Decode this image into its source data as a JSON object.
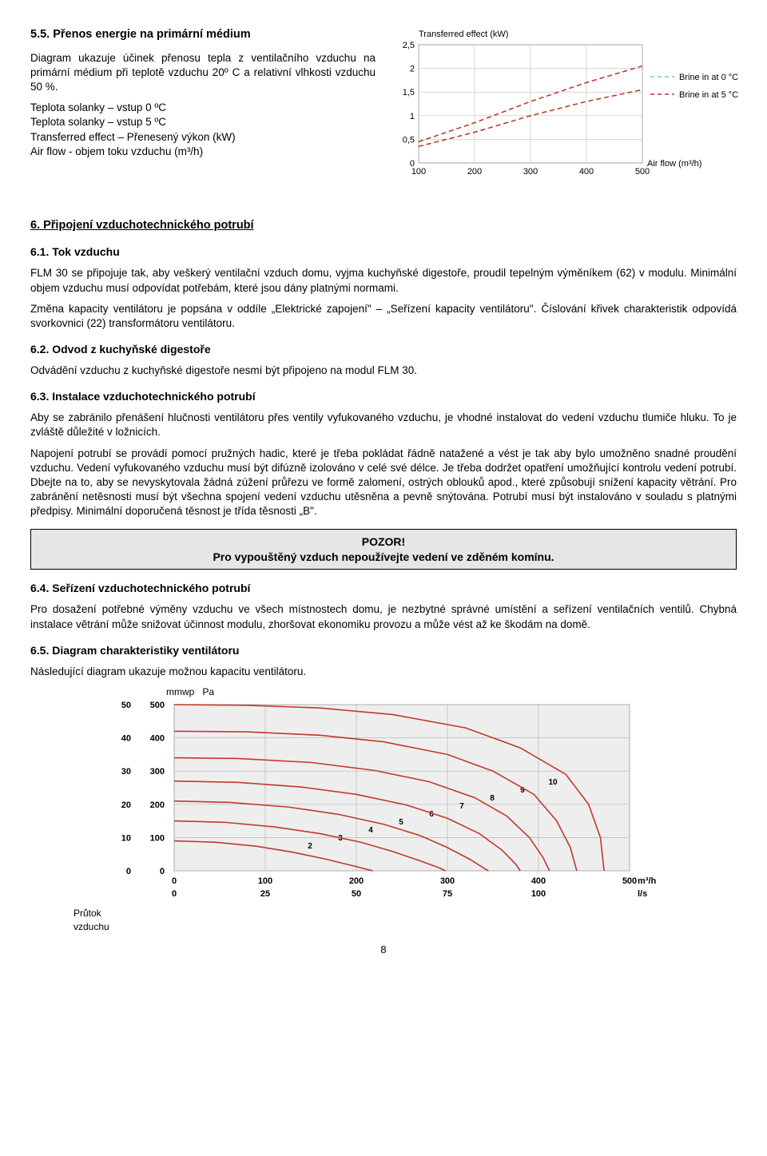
{
  "section55": {
    "heading": "5.5.    Přenos energie na primární médium",
    "p1": "Diagram ukazuje účinek přenosu tepla z ventilačního vzduchu na primární médium při teplotě vzduchu 20º C a relativní vlhkosti vzduchu 50 %.",
    "l1": "Teplota solanky – vstup 0 ºC",
    "l2": "Teplota solanky – vstup 5 ºC",
    "l3": "Transferred effect – Přenesený výkon (kW)",
    "l4": "Air flow - objem toku vzduchu (m³/h)"
  },
  "chart1": {
    "type": "line",
    "ylabel": "Transferred effect (kW)",
    "xlabel": "Air flow (m³/h)",
    "yticks": [
      0,
      0.5,
      1,
      1.5,
      2,
      2.5
    ],
    "xticks": [
      100,
      200,
      300,
      400,
      500
    ],
    "xlim": [
      100,
      500
    ],
    "ylim": [
      0,
      2.5
    ],
    "grid_color": "#c0c0c0",
    "background_color": "#ffffff",
    "series": [
      {
        "name": "Brine in at 0 °C",
        "color": "#c0392b",
        "dash": "6,4",
        "legend_color": "#7bd389",
        "x": [
          100,
          200,
          300,
          400,
          500
        ],
        "y": [
          0.45,
          0.85,
          1.3,
          1.7,
          2.05
        ]
      },
      {
        "name": "Brine in at 5 °C",
        "color": "#c0392b",
        "dash": "6,4",
        "legend_color": "#c0392b",
        "x": [
          100,
          200,
          300,
          400,
          500
        ],
        "y": [
          0.35,
          0.65,
          1.0,
          1.3,
          1.55
        ]
      }
    ],
    "label_fontsize": 11
  },
  "section6": {
    "heading": "6.      Připojení  vzduchotechnického potrubí"
  },
  "section61": {
    "heading": "6.1.   Tok vzduchu",
    "p1": "FLM 30 se připojuje tak, aby veškerý ventilační vzduch domu, vyjma kuchyňské digestoře, proudil tepelným výměníkem (62) v modulu. Minimální objem vzduchu musí odpovídat potřebám, které jsou dány platnými normami.",
    "p2": "Změna kapacity ventilátoru je popsána v oddíle  „Elektrické zapojení\" – „Seřízení kapacity ventilátoru\". Číslování křivek charakteristik odpovídá svorkovnici (22) transformátoru ventilátoru."
  },
  "section62": {
    "heading": "6.2.    Odvod z kuchyňské digestoře",
    "p1": "Odvádění vzduchu z kuchyňské digestoře nesmí být připojeno na modul FLM 30."
  },
  "section63": {
    "heading": "6.3.    Instalace vzduchotechnického potrubí",
    "p1": "Aby se zabránilo přenášení hlučnosti ventilátoru přes ventily vyfukovaného vzduchu, je vhodné instalovat do vedení vzduchu tlumiče hluku. To je zvláště důležité v ložnicích.",
    "p2": "Napojení potrubí se provádí pomocí pružných hadic, které je třeba pokládat řádně natažené a vést je tak aby bylo umožněno snadné proudění vzduchu. Vedení vyfukovaného vzduchu musí být difúzně izolováno v celé své délce. Je třeba dodržet opatření umožňující kontrolu vedení potrubí. Dbejte na to, aby se nevyskytovala žádná zúžení průřezu ve formě zalomení, ostrých oblouků apod., které způsobují snížení kapacity větrání. Pro zabránění netěsnosti musí být všechna spojení vedení vzduchu utěsněna a pevně snýtována. Potrubí musí být instalováno v souladu s platnými předpisy. Minimální doporučená těsnost je třída těsnosti „B\"."
  },
  "warn": {
    "line1": "POZOR!",
    "line2": "Pro vypouštěný vzduch nepoužívejte vedení ve  zděném komínu."
  },
  "section64": {
    "heading": "6.4.   Seřízení vzduchotechnického potrubí",
    "p1": "Pro dosažení potřebné výměny vzduchu ve všech místnostech domu, je nezbytné správné umístění a seřízení ventilačních ventilů. Chybná instalace větrání může snižovat účinnost modulu, zhoršovat ekonomiku provozu a může vést až ke škodám na domě."
  },
  "section65": {
    "heading": "6.5.   Diagram charakteristiky ventilátoru",
    "p1": "Následující diagram ukazuje možnou kapacitu ventilátoru."
  },
  "chart2": {
    "type": "line",
    "ylabel_left": "mmwp",
    "ylabel_right": "Pa",
    "y_mmwp": [
      0,
      10,
      20,
      30,
      40,
      50
    ],
    "y_pa": [
      0,
      100,
      200,
      300,
      400,
      500
    ],
    "x_m3h": [
      0,
      100,
      200,
      300,
      400,
      500
    ],
    "x_ls": [
      0,
      25,
      50,
      75,
      100
    ],
    "x_unit_top": "m³/h",
    "x_unit_bottom": "l/s",
    "flow_label": "Průtok vzduchu",
    "inner_ticks": [
      2,
      3,
      4,
      5,
      6,
      7,
      8,
      9,
      10
    ],
    "xlim": [
      0,
      500
    ],
    "ylim_pa": [
      0,
      500
    ],
    "grid_color": "#b8b8b8",
    "background_color": "#eeeeee",
    "line_color": "#c0392b",
    "line_width": 1.6,
    "fontsize": 11,
    "curves": [
      [
        [
          0,
          500
        ],
        [
          80,
          498
        ],
        [
          160,
          490
        ],
        [
          240,
          470
        ],
        [
          320,
          430
        ],
        [
          380,
          370
        ],
        [
          430,
          290
        ],
        [
          455,
          200
        ],
        [
          468,
          100
        ],
        [
          472,
          0
        ]
      ],
      [
        [
          0,
          420
        ],
        [
          80,
          418
        ],
        [
          160,
          408
        ],
        [
          230,
          388
        ],
        [
          300,
          350
        ],
        [
          350,
          300
        ],
        [
          395,
          230
        ],
        [
          420,
          150
        ],
        [
          435,
          70
        ],
        [
          442,
          0
        ]
      ],
      [
        [
          0,
          340
        ],
        [
          70,
          338
        ],
        [
          150,
          326
        ],
        [
          220,
          302
        ],
        [
          280,
          268
        ],
        [
          330,
          220
        ],
        [
          365,
          165
        ],
        [
          390,
          100
        ],
        [
          405,
          40
        ],
        [
          412,
          0
        ]
      ],
      [
        [
          0,
          270
        ],
        [
          70,
          266
        ],
        [
          140,
          252
        ],
        [
          200,
          230
        ],
        [
          255,
          198
        ],
        [
          300,
          158
        ],
        [
          335,
          112
        ],
        [
          360,
          62
        ],
        [
          375,
          20
        ],
        [
          380,
          0
        ]
      ],
      [
        [
          0,
          210
        ],
        [
          60,
          206
        ],
        [
          125,
          192
        ],
        [
          180,
          170
        ],
        [
          230,
          140
        ],
        [
          270,
          106
        ],
        [
          300,
          70
        ],
        [
          325,
          34
        ],
        [
          340,
          8
        ],
        [
          345,
          0
        ]
      ],
      [
        [
          0,
          150
        ],
        [
          55,
          146
        ],
        [
          110,
          132
        ],
        [
          160,
          112
        ],
        [
          205,
          86
        ],
        [
          240,
          58
        ],
        [
          270,
          30
        ],
        [
          290,
          10
        ],
        [
          298,
          0
        ]
      ],
      [
        [
          0,
          90
        ],
        [
          45,
          86
        ],
        [
          90,
          74
        ],
        [
          130,
          56
        ],
        [
          165,
          36
        ],
        [
          195,
          16
        ],
        [
          212,
          4
        ],
        [
          218,
          0
        ]
      ]
    ]
  },
  "page_num": "8"
}
